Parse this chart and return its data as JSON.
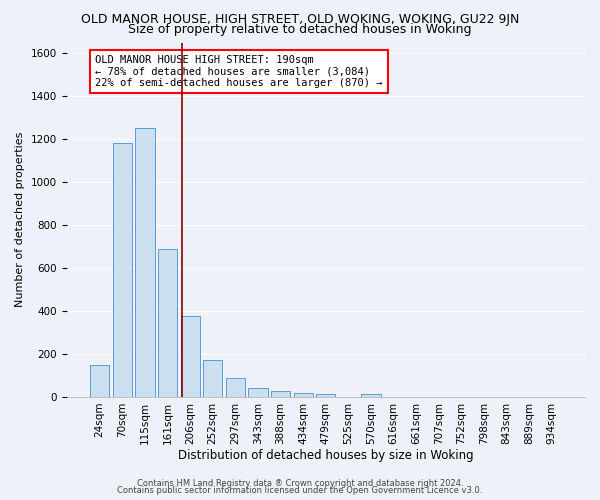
{
  "title": "OLD MANOR HOUSE, HIGH STREET, OLD WOKING, WOKING, GU22 9JN",
  "subtitle": "Size of property relative to detached houses in Woking",
  "xlabel": "Distribution of detached houses by size in Woking",
  "ylabel": "Number of detached properties",
  "footnote1": "Contains HM Land Registry data ® Crown copyright and database right 2024.",
  "footnote2": "Contains public sector information licensed under the Open Government Licence v3.0.",
  "bar_labels": [
    "24sqm",
    "70sqm",
    "115sqm",
    "161sqm",
    "206sqm",
    "252sqm",
    "297sqm",
    "343sqm",
    "388sqm",
    "434sqm",
    "479sqm",
    "525sqm",
    "570sqm",
    "616sqm",
    "661sqm",
    "707sqm",
    "752sqm",
    "798sqm",
    "843sqm",
    "889sqm",
    "934sqm"
  ],
  "bar_values": [
    150,
    1180,
    1250,
    690,
    375,
    170,
    90,
    40,
    30,
    20,
    15,
    0,
    15,
    0,
    0,
    0,
    0,
    0,
    0,
    0,
    0
  ],
  "bar_color": "#ccdff0",
  "bar_edge_color": "#5b9bd5",
  "annotation_text": "OLD MANOR HOUSE HIGH STREET: 190sqm\n← 78% of detached houses are smaller (3,084)\n22% of semi-detached houses are larger (870) →",
  "annotation_box_facecolor": "white",
  "annotation_box_edgecolor": "red",
  "red_line_color": "#8b0000",
  "ylim": [
    0,
    1650
  ],
  "yticks": [
    0,
    200,
    400,
    600,
    800,
    1000,
    1200,
    1400,
    1600
  ],
  "bg_color": "#eef2f8",
  "grid_color": "white",
  "title_fontsize": 9,
  "subtitle_fontsize": 9,
  "axis_label_fontsize": 8.5,
  "tick_fontsize": 7.5,
  "annotation_fontsize": 7.5,
  "footnote_fontsize": 6,
  "ylabel_fontsize": 8
}
